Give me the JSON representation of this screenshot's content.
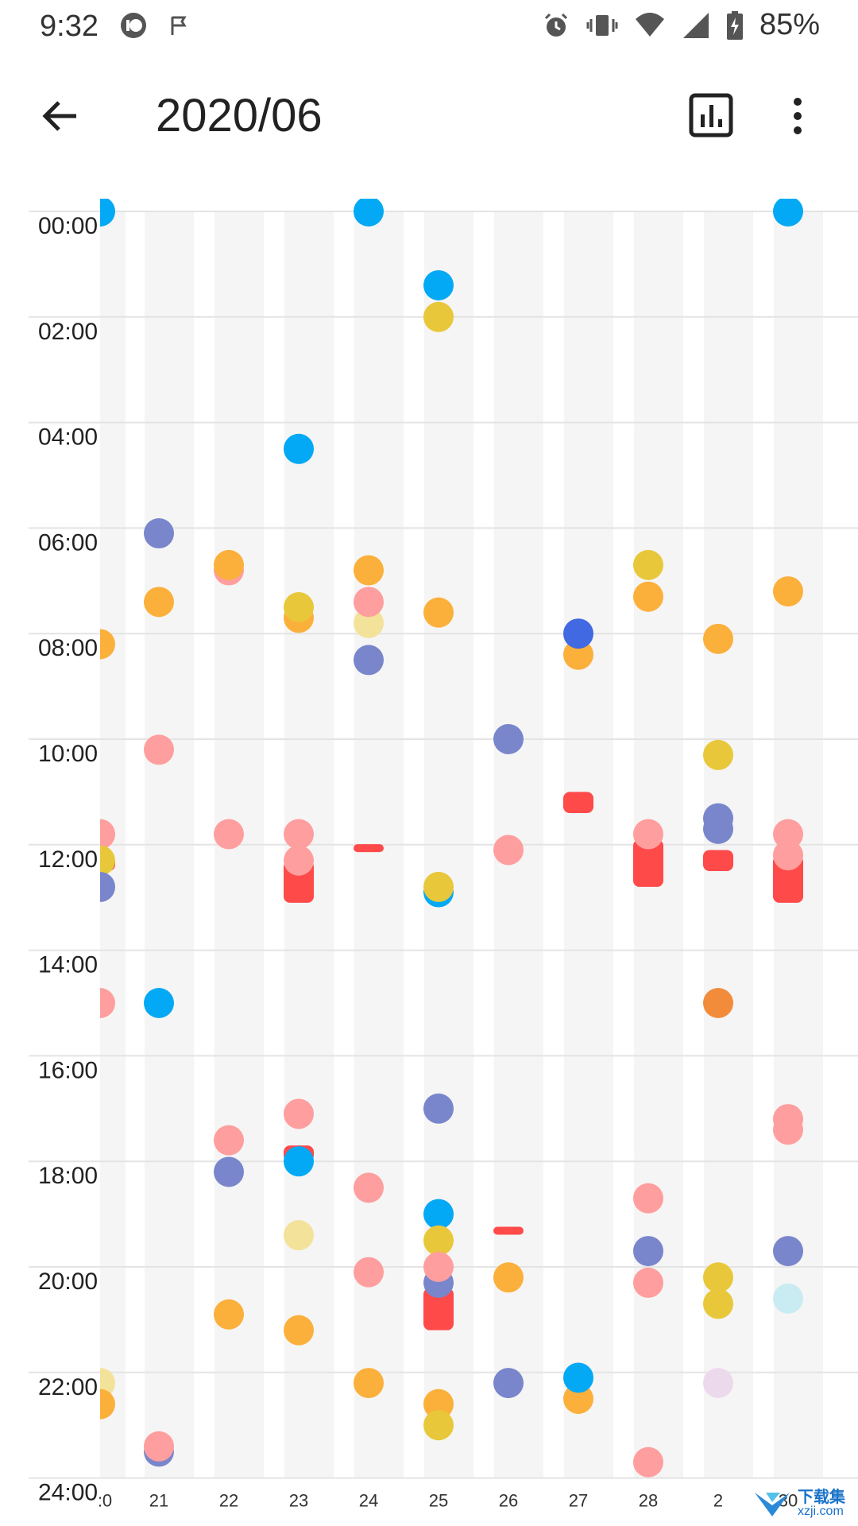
{
  "status_bar": {
    "time": "9:32",
    "battery": "85%",
    "icons": [
      "app-badge-icon",
      "flag-icon",
      "alarm-icon",
      "vibrate-icon",
      "wifi-icon",
      "signal-icon",
      "battery-charging-icon"
    ]
  },
  "app_bar": {
    "title": "2020/06",
    "back_icon": "arrow-left-icon",
    "stats_icon": "bar-chart-icon",
    "more_icon": "more-vert-icon"
  },
  "calendar": {
    "hours": [
      "00:00",
      "02:00",
      "04:00",
      "06:00",
      "08:00",
      "10:00",
      "12:00",
      "14:00",
      "16:00",
      "18:00",
      "20:00",
      "22:00",
      "24:00"
    ],
    "days": [
      ":0",
      "21",
      "22",
      "23",
      "24",
      "25",
      "26",
      "27",
      "28",
      "2",
      "30"
    ],
    "colors": {
      "blue": "#03a9f4",
      "indigo": "#7986cb",
      "royal": "#4169e1",
      "orange": "#fbb03b",
      "yellow": "#e8c83a",
      "pale_yellow": "#f3e29a",
      "pink": "#ff9e9e",
      "red": "#ff4a4a",
      "dark_orange": "#f28c3a",
      "pale_cyan": "#c9ecf2",
      "lavender": "#edd9ec"
    },
    "events": [
      {
        "day": 0,
        "start": 0.0,
        "color": "blue"
      },
      {
        "day": 0,
        "start": 8.2,
        "color": "orange"
      },
      {
        "day": 0,
        "start": 11.8,
        "color": "pink"
      },
      {
        "day": 0,
        "start": 12.2,
        "end": 12.5,
        "color": "red"
      },
      {
        "day": 0,
        "start": 12.3,
        "color": "yellow"
      },
      {
        "day": 0,
        "start": 12.8,
        "color": "indigo"
      },
      {
        "day": 0,
        "start": 15.0,
        "color": "pink"
      },
      {
        "day": 0,
        "start": 22.2,
        "color": "pale_yellow"
      },
      {
        "day": 0,
        "start": 22.6,
        "color": "orange"
      },
      {
        "day": 1,
        "start": 6.1,
        "color": "indigo"
      },
      {
        "day": 1,
        "start": 7.4,
        "color": "orange"
      },
      {
        "day": 1,
        "start": 10.2,
        "color": "pink"
      },
      {
        "day": 1,
        "start": 15.0,
        "color": "blue"
      },
      {
        "day": 1,
        "start": 23.5,
        "color": "indigo"
      },
      {
        "day": 1,
        "start": 23.4,
        "color": "pink"
      },
      {
        "day": 2,
        "start": 6.8,
        "color": "pink"
      },
      {
        "day": 2,
        "start": 6.7,
        "color": "orange"
      },
      {
        "day": 2,
        "start": 11.8,
        "color": "pink"
      },
      {
        "day": 2,
        "start": 17.6,
        "color": "pink"
      },
      {
        "day": 2,
        "start": 18.2,
        "color": "indigo"
      },
      {
        "day": 2,
        "start": 20.9,
        "color": "orange"
      },
      {
        "day": 3,
        "start": 4.5,
        "color": "blue"
      },
      {
        "day": 3,
        "start": 7.7,
        "color": "orange"
      },
      {
        "day": 3,
        "start": 7.5,
        "color": "yellow"
      },
      {
        "day": 3,
        "start": 11.8,
        "color": "pink"
      },
      {
        "day": 3,
        "start": 12.3,
        "end": 13.1,
        "color": "red"
      },
      {
        "day": 3,
        "start": 12.3,
        "color": "pink"
      },
      {
        "day": 3,
        "start": 17.1,
        "color": "pink"
      },
      {
        "day": 3,
        "start": 17.7,
        "end": 18.0,
        "color": "red"
      },
      {
        "day": 3,
        "start": 18.0,
        "color": "blue"
      },
      {
        "day": 3,
        "start": 19.4,
        "color": "pale_yellow"
      },
      {
        "day": 3,
        "start": 21.2,
        "color": "orange"
      },
      {
        "day": 4,
        "start": 0.0,
        "color": "blue"
      },
      {
        "day": 4,
        "start": 6.8,
        "color": "orange"
      },
      {
        "day": 4,
        "start": 7.8,
        "color": "pale_yellow"
      },
      {
        "day": 4,
        "start": 7.4,
        "color": "pink"
      },
      {
        "day": 4,
        "start": 8.5,
        "color": "indigo"
      },
      {
        "day": 4,
        "start": 12.05,
        "end": 12.15,
        "color": "red"
      },
      {
        "day": 4,
        "start": 18.5,
        "color": "pink"
      },
      {
        "day": 4,
        "start": 20.1,
        "color": "pink"
      },
      {
        "day": 4,
        "start": 22.2,
        "color": "orange"
      },
      {
        "day": 5,
        "start": 1.4,
        "color": "blue"
      },
      {
        "day": 5,
        "start": 2.0,
        "color": "yellow"
      },
      {
        "day": 5,
        "start": 7.6,
        "color": "orange"
      },
      {
        "day": 5,
        "start": 12.9,
        "color": "blue"
      },
      {
        "day": 5,
        "start": 12.8,
        "color": "yellow"
      },
      {
        "day": 5,
        "start": 17.0,
        "color": "indigo"
      },
      {
        "day": 5,
        "start": 19.0,
        "color": "blue"
      },
      {
        "day": 5,
        "start": 19.5,
        "color": "yellow"
      },
      {
        "day": 5,
        "start": 20.4,
        "end": 21.2,
        "color": "red"
      },
      {
        "day": 5,
        "start": 20.3,
        "color": "indigo"
      },
      {
        "day": 5,
        "start": 20.0,
        "color": "pink"
      },
      {
        "day": 5,
        "start": 22.6,
        "color": "orange"
      },
      {
        "day": 5,
        "start": 23.0,
        "color": "yellow"
      },
      {
        "day": 6,
        "start": 10.0,
        "color": "indigo"
      },
      {
        "day": 6,
        "start": 12.1,
        "color": "pink"
      },
      {
        "day": 6,
        "start": 19.3,
        "end": 19.35,
        "color": "red"
      },
      {
        "day": 6,
        "start": 20.2,
        "color": "orange"
      },
      {
        "day": 6,
        "start": 22.2,
        "color": "indigo"
      },
      {
        "day": 7,
        "start": 8.4,
        "color": "orange"
      },
      {
        "day": 7,
        "start": 8.0,
        "color": "royal"
      },
      {
        "day": 7,
        "start": 11.0,
        "end": 11.4,
        "color": "red"
      },
      {
        "day": 7,
        "start": 22.5,
        "color": "orange"
      },
      {
        "day": 7,
        "start": 22.1,
        "color": "blue"
      },
      {
        "day": 8,
        "start": 6.7,
        "color": "yellow"
      },
      {
        "day": 8,
        "start": 7.3,
        "color": "orange"
      },
      {
        "day": 8,
        "start": 11.9,
        "end": 12.8,
        "color": "red"
      },
      {
        "day": 8,
        "start": 11.8,
        "color": "pink"
      },
      {
        "day": 8,
        "start": 18.7,
        "color": "pink"
      },
      {
        "day": 8,
        "start": 19.7,
        "color": "indigo"
      },
      {
        "day": 8,
        "start": 20.3,
        "color": "pink"
      },
      {
        "day": 8,
        "start": 23.7,
        "color": "pink"
      },
      {
        "day": 9,
        "start": 8.1,
        "color": "orange"
      },
      {
        "day": 9,
        "start": 10.3,
        "color": "yellow"
      },
      {
        "day": 9,
        "start": 12.1,
        "end": 12.5,
        "color": "red"
      },
      {
        "day": 9,
        "start": 11.7,
        "color": "indigo"
      },
      {
        "day": 9,
        "start": 11.5,
        "color": "indigo"
      },
      {
        "day": 9,
        "start": 15.0,
        "color": "dark_orange"
      },
      {
        "day": 9,
        "start": 20.2,
        "color": "yellow"
      },
      {
        "day": 9,
        "start": 20.7,
        "color": "yellow"
      },
      {
        "day": 9,
        "start": 22.2,
        "color": "lavender"
      },
      {
        "day": 10,
        "start": 0.0,
        "color": "blue"
      },
      {
        "day": 10,
        "start": 7.2,
        "color": "orange"
      },
      {
        "day": 10,
        "start": 11.8,
        "color": "pink"
      },
      {
        "day": 10,
        "start": 12.2,
        "end": 13.1,
        "color": "red"
      },
      {
        "day": 10,
        "start": 12.2,
        "color": "pink"
      },
      {
        "day": 10,
        "start": 17.2,
        "color": "pink"
      },
      {
        "day": 10,
        "start": 17.4,
        "color": "pink"
      },
      {
        "day": 10,
        "start": 19.7,
        "color": "indigo"
      },
      {
        "day": 10,
        "start": 20.6,
        "color": "pale_cyan"
      }
    ]
  },
  "watermark": {
    "brand": "下载集",
    "domain": "xzji.com"
  }
}
